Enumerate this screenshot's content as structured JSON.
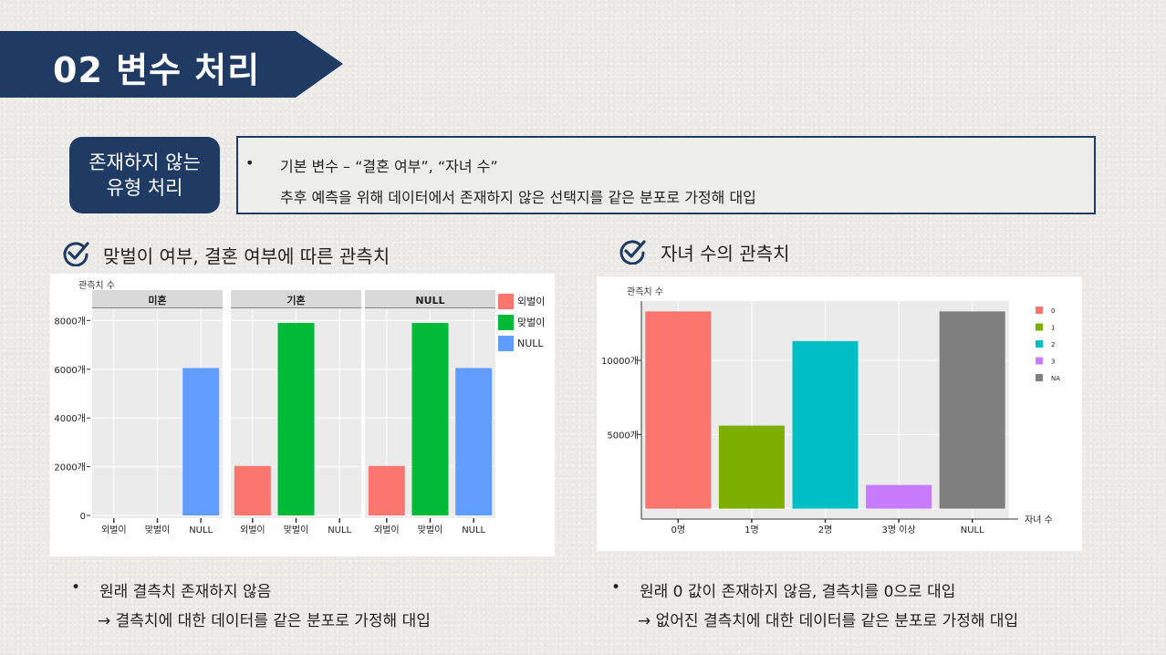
{
  "header": {
    "title": "02  변수 처리"
  },
  "pill": {
    "line1": "존재하지 않는",
    "line2": "유형 처리"
  },
  "info": {
    "bullet": "•",
    "line1": "기본 변수 – “결혼 여부”,  “자녀 수”",
    "line2": "추후 예측을 위해 데이터에서 존재하지 않은 선택지를 같은 분포로 가정해 대입"
  },
  "left_section": {
    "title": "맞벌이 여부, 결혼 여부에 따른 관측치",
    "icon": "check-circle-icon"
  },
  "right_section": {
    "title": "자녀 수의 관측치",
    "icon": "check-circle-icon"
  },
  "colors": {
    "navy": "#1f3a63",
    "red": "#f8766d",
    "green": "#00ba38",
    "blue": "#619cff",
    "r0": "#f8766d",
    "r1": "#7cae00",
    "r2": "#00bfc4",
    "r3": "#c77cff",
    "rNA": "#7f7f7f"
  },
  "chart_data": [
    {
      "type": "bar",
      "ylabel": "관측치 수",
      "ylim": [
        0,
        8500
      ],
      "y_ticks": [
        0,
        2000,
        4000,
        6000,
        8000
      ],
      "y_tick_labels": [
        "0",
        "2000개",
        "4000개",
        "6000개",
        "8000개"
      ],
      "categories": [
        "외벌이",
        "맞벌이",
        "NULL"
      ],
      "facets": [
        {
          "name": "미혼",
          "values": [
            0,
            0,
            6050
          ]
        },
        {
          "name": "기혼",
          "values": [
            2030,
            7900,
            0
          ]
        },
        {
          "name": "NULL",
          "values": [
            2030,
            7900,
            6050
          ]
        }
      ],
      "legend": [
        "외벌이",
        "맞벌이",
        "NULL"
      ]
    },
    {
      "type": "bar",
      "ylabel": "관측치 수",
      "xlabel": "자녀 수",
      "ylim": [
        -700,
        14000
      ],
      "y_ticks": [
        5000,
        10000
      ],
      "y_tick_labels": [
        "5000개",
        "10000개"
      ],
      "categories": [
        "0명",
        "1명",
        "2명",
        "3명 이상",
        "NULL"
      ],
      "values": [
        13300,
        5600,
        11300,
        1600,
        13300
      ],
      "legend": [
        "0",
        "1",
        "2",
        "3",
        "NA"
      ]
    }
  ],
  "left_notes": {
    "bullet": "•",
    "line1": "원래 결측치 존재하지 않음",
    "line2": "→ 결측치에 대한 데이터를 같은 분포로 가정해 대입"
  },
  "right_notes": {
    "bullet": "•",
    "line1": "원래 0 값이 존재하지 않음, 결측치를 0으로 대입",
    "line2": "→ 없어진 결측치에 대한 데이터를 같은 분포로 가정해 대입"
  }
}
